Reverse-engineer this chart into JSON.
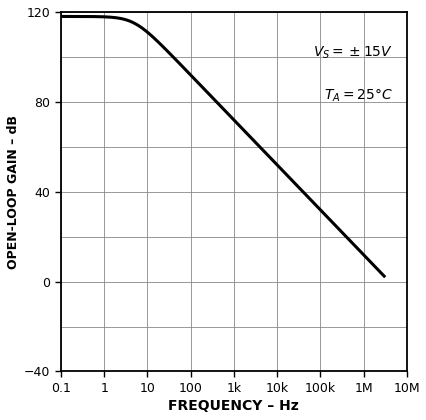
{
  "title": "",
  "xlabel": "FREQUENCY – Hz",
  "ylabel": "OPEN-LOOP GAIN – dB",
  "xlim_log": [
    -1,
    7
  ],
  "ylim": [
    -40,
    120
  ],
  "yticks": [
    -40,
    0,
    40,
    80,
    120
  ],
  "xtick_values": [
    0.1,
    1,
    10,
    100,
    1000,
    10000,
    100000,
    1000000,
    10000000
  ],
  "xtick_labels": [
    "0.1",
    "1",
    "10",
    "100",
    "1k",
    "10k",
    "100k",
    "1M",
    "10M"
  ],
  "dc_gain_db": 118,
  "pole_freq": 5,
  "f_end": 3000000,
  "line_color": "#000000",
  "line_width": 2.2,
  "grid_color": "#888888",
  "grid_linewidth": 0.6,
  "background_color": "#ffffff",
  "tick_labelsize": 9,
  "xlabel_fontsize": 10,
  "ylabel_fontsize": 9,
  "annot_fontsize": 10
}
